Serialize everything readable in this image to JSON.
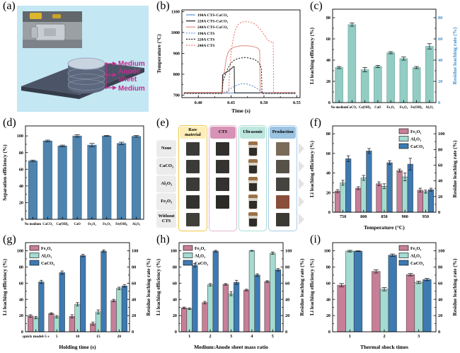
{
  "letters": [
    "(a)",
    "(b)",
    "(c)",
    "(d)",
    "(e)",
    "(f)",
    "(g)",
    "(h)",
    "(i)"
  ],
  "panel_a": {
    "bg": "#c3e7f3",
    "accent": "#c42b8f",
    "labels": [
      "Medium",
      "Anode",
      "sheet",
      "Medium"
    ]
  },
  "panel_e": {
    "columns": [
      {
        "label": "Raw material",
        "header_bg": "#fdeeb8",
        "border": "#f0c64a"
      },
      {
        "label": "CTS",
        "header_bg": "#d793b5",
        "border": "#e2b6ca"
      },
      {
        "label": "Ultrasonic",
        "header_bg": "#bde7de",
        "border": "#a8ded6"
      },
      {
        "label": "Production",
        "header_bg": "#9cc3e2",
        "border": "#a9cce8"
      }
    ],
    "rows": [
      {
        "label": "None",
        "raw": "#3b3a36",
        "cts": "#31302c",
        "production": "#7a6a58"
      },
      {
        "label": "CaCO₃",
        "raw": "#3b3a36",
        "cts": "#34332f",
        "production": "#56524a"
      },
      {
        "label": "Al₂O₃",
        "raw": "#3b3a36",
        "cts": "#33322e",
        "production": "#46443e"
      },
      {
        "label": "Fe₂O₃",
        "raw": "#34322e",
        "cts": "#2b2a26",
        "production": "#8a4e3a"
      },
      {
        "label": "Without CTS",
        "raw": "#403f3a",
        "cts": null,
        "production": "#3b3a34"
      }
    ]
  },
  "chart_data": [
    {
      "panel": "b",
      "type": "line",
      "xlabel": "Time (s)",
      "ylabel": "Temperature (°C)",
      "x_min": 0.375,
      "x_max": 0.555,
      "y_min": 688,
      "y_max": 1108,
      "x_ticks": [
        0.4,
        0.45,
        0.5,
        0.55
      ],
      "x_tick_labels": [
        "0.40",
        "0.45",
        "0.50",
        "0.55"
      ],
      "y_ticks": [
        700,
        800,
        900,
        1000,
        1100
      ],
      "legend_pos": "tl",
      "series": [
        {
          "name": "190A CTS-CaCO₃",
          "color": "#5b8fc9",
          "dash": false,
          "points": [
            [
              0.378,
              710
            ],
            [
              0.548,
              710
            ]
          ]
        },
        {
          "name": "220A CTS-CaCO₃",
          "color": "#1a1a1a",
          "dash": false,
          "points": [
            [
              0.378,
              710
            ],
            [
              0.4365,
              710
            ],
            [
              0.437,
              796
            ],
            [
              0.441,
              806
            ],
            [
              0.446,
              816
            ],
            [
              0.451,
              829
            ],
            [
              0.4535,
              836
            ],
            [
              0.4548,
              836
            ],
            [
              0.4552,
              711
            ],
            [
              0.548,
              711
            ]
          ]
        },
        {
          "name": "240A CTS-CaCO₃",
          "color": "#dd8a7e",
          "dash": false,
          "points": [
            [
              0.378,
              712
            ],
            [
              0.4368,
              712
            ],
            [
              0.4382,
              798
            ],
            [
              0.4398,
              812
            ],
            [
              0.4425,
              872
            ],
            [
              0.4455,
              906
            ],
            [
              0.4505,
              923
            ],
            [
              0.456,
              931
            ],
            [
              0.465,
              936
            ],
            [
              0.476,
              936
            ],
            [
              0.486,
              931
            ],
            [
              0.4905,
              925
            ],
            [
              0.4935,
              914
            ],
            [
              0.4943,
              712
            ],
            [
              0.548,
              712
            ]
          ]
        },
        {
          "name": "190A CTS",
          "color": "#5b8fc9",
          "dash": true,
          "points": [
            [
              0.378,
              709
            ],
            [
              0.4395,
              709
            ],
            [
              0.445,
              721
            ],
            [
              0.451,
              735
            ],
            [
              0.459,
              748
            ],
            [
              0.4665,
              755
            ],
            [
              0.474,
              753
            ],
            [
              0.484,
              743
            ],
            [
              0.4935,
              724
            ],
            [
              0.4995,
              711
            ],
            [
              0.505,
              709
            ],
            [
              0.548,
              709
            ]
          ]
        },
        {
          "name": "220A CTS",
          "color": "#1a1a1a",
          "dash": true,
          "points": [
            [
              0.378,
              708
            ],
            [
              0.436,
              708
            ],
            [
              0.4372,
              762
            ],
            [
              0.4405,
              792
            ],
            [
              0.4455,
              831
            ],
            [
              0.4505,
              856
            ],
            [
              0.4555,
              869
            ],
            [
              0.4625,
              877
            ],
            [
              0.4705,
              880
            ],
            [
              0.478,
              878
            ],
            [
              0.4855,
              871
            ],
            [
              0.4905,
              861
            ],
            [
              0.4945,
              844
            ],
            [
              0.4962,
              824
            ],
            [
              0.497,
              708
            ],
            [
              0.548,
              708
            ]
          ]
        },
        {
          "name": "240A CTS",
          "color": "#e8796c",
          "dash": true,
          "points": [
            [
              0.378,
              713
            ],
            [
              0.4462,
              713
            ],
            [
              0.4478,
              812
            ],
            [
              0.4494,
              882
            ],
            [
              0.4512,
              932
            ],
            [
              0.4536,
              976
            ],
            [
              0.4562,
              1010
            ],
            [
              0.4602,
              1036
            ],
            [
              0.4652,
              1049
            ],
            [
              0.4702,
              1052
            ],
            [
              0.478,
              1050
            ],
            [
              0.4852,
              1042
            ],
            [
              0.4902,
              1030
            ],
            [
              0.4952,
              1012
            ],
            [
              0.5002,
              990
            ],
            [
              0.5052,
              966
            ],
            [
              0.5082,
              958
            ],
            [
              0.5122,
              953
            ],
            [
              0.5142,
              953
            ],
            [
              0.5148,
              713
            ],
            [
              0.548,
              713
            ]
          ]
        }
      ]
    },
    {
      "panel": "c",
      "type": "bar",
      "bar_frac": 0.6,
      "cat_font": 4.7,
      "categories": [
        "No medium",
        "CaCO₃",
        "Ca(OH)₂",
        "CaO",
        "Fe₂O₃",
        "Fe₃O₄",
        "Fe(OH)₃",
        "Al₂O₃"
      ],
      "series": [
        {
          "name": "",
          "color": "#92ccc3",
          "edge": "#4d9a8f",
          "values": [
            33,
            73.5,
            31,
            34,
            47,
            41.5,
            33,
            53
          ],
          "errors": [
            1,
            1.5,
            2,
            1,
            1,
            1.5,
            1,
            2.5
          ]
        }
      ],
      "left_axis": {
        "label": "Li leaching efficiency (%)",
        "ticks": [
          0,
          20,
          40,
          60,
          80
        ],
        "max": 88
      },
      "right_axis": {
        "label": "Residue leaching rate (%)",
        "ticks": [
          0,
          20,
          40,
          60,
          80
        ],
        "max": 88,
        "color": "#3f8ecb"
      }
    },
    {
      "panel": "d",
      "type": "bar",
      "bar_frac": 0.6,
      "cat_font": 4.7,
      "categories": [
        "No medium",
        "CaCO₃",
        "Ca(OH)₂",
        "CaO",
        "Fe₂O₃",
        "Fe₃O₄",
        "Fe(OH)₃",
        "Al₂O₃"
      ],
      "series": [
        {
          "name": "",
          "color": "#4f84ae",
          "edge": "#24557c",
          "values": [
            70,
            94,
            88,
            100,
            89,
            100,
            91,
            99.5
          ],
          "errors": [
            1,
            1,
            1,
            1.5,
            2,
            0.5,
            1.5,
            1
          ]
        }
      ],
      "left_axis": {
        "label": "Separation efficiency (%)",
        "ticks": [
          0,
          20,
          40,
          60,
          80,
          100
        ],
        "max": 112
      }
    },
    {
      "panel": "f",
      "type": "bar",
      "bar_frac": 0.78,
      "cat_font": 6.2,
      "legend": "tr",
      "xlabel": "Temperature (°C)",
      "categories": [
        "750",
        "800",
        "850",
        "900",
        "950"
      ],
      "series": [
        {
          "name": "Fe₂O₃",
          "color": "#c77f98",
          "edge": "#333333",
          "values": [
            21.5,
            24.5,
            29,
            42.5,
            22.5
          ],
          "errors": [
            1.5,
            1.5,
            2,
            1.5,
            2
          ]
        },
        {
          "name": "Al₂O₃",
          "color": "#a5dbd1",
          "edge": "#333333",
          "values": [
            30,
            35,
            26.5,
            36,
            21
          ],
          "errors": [
            2.5,
            2.5,
            2.5,
            4,
            1.5
          ]
        },
        {
          "name": "CaCO₃",
          "color": "#3d7ab2",
          "edge": "#333333",
          "values": [
            54.5,
            62.5,
            50.5,
            49,
            23
          ],
          "errors": [
            3,
            2.5,
            2,
            6,
            1.5
          ]
        }
      ],
      "left_axis": {
        "label": "Li leaching efficiency (%)",
        "ticks": [
          0,
          20,
          40,
          60,
          80
        ],
        "max": 88
      },
      "right_axis": {
        "label": "Residue leaching rate (%)",
        "ticks": [
          0,
          20,
          40,
          60,
          80,
          100
        ],
        "max": 110,
        "color": "#000000"
      }
    },
    {
      "panel": "g",
      "type": "bar",
      "bar_frac": 0.78,
      "cat_font": 5.6,
      "legend": "tl",
      "xlabel": "Holding time (s)",
      "categories": [
        "quick model-5 s",
        "5",
        "10",
        "15",
        "20"
      ],
      "series": [
        {
          "name": "Fe₂O₃",
          "color": "#c77f98",
          "edge": "#333333",
          "values": [
            19.5,
            22.5,
            19,
            10,
            38.5
          ],
          "errors": [
            1.5,
            1,
            2,
            2,
            1.5
          ]
        },
        {
          "name": "Al₂O₃",
          "color": "#a5dbd1",
          "edge": "#333333",
          "values": [
            17.5,
            18.5,
            34,
            24.5,
            53.5
          ],
          "errors": [
            1.5,
            1.5,
            2,
            2.5,
            1.5
          ]
        },
        {
          "name": "CaCO₃",
          "color": "#3d7ab2",
          "edge": "#333333",
          "values": [
            61.5,
            73,
            94,
            99.5,
            56.5
          ],
          "errors": [
            2,
            2,
            1.5,
            1.5,
            1.5
          ]
        }
      ],
      "left_axis": {
        "label": "Li leaching efficiency (%)",
        "ticks": [
          0,
          20,
          40,
          60,
          80,
          100
        ],
        "max": 110
      },
      "right_axis": {
        "label": "Residue leaching rate (%)",
        "ticks": [
          0,
          20,
          40,
          60,
          80,
          100
        ],
        "max": 110,
        "color": "#000000"
      }
    },
    {
      "panel": "h",
      "type": "bar",
      "bar_frac": 0.78,
      "cat_font": 6.2,
      "legend": "tl",
      "xlabel": "Medium:Anode sheet mass ratio",
      "categories": [
        "1",
        "2",
        "3",
        "4",
        "5"
      ],
      "series": [
        {
          "name": "Fe₂O₃",
          "color": "#c77f98",
          "edge": "#333333",
          "values": [
            29.5,
            36,
            58.5,
            51.5,
            62
          ],
          "errors": [
            1,
            1.5,
            1,
            1,
            1
          ]
        },
        {
          "name": "Al₂O₃",
          "color": "#a5dbd1",
          "edge": "#333333",
          "values": [
            28.5,
            58,
            47,
            100,
            97
          ],
          "errors": [
            1,
            1.5,
            2.5,
            0.5,
            1.5
          ]
        },
        {
          "name": "CaCO₃",
          "color": "#3d7ab2",
          "edge": "#333333",
          "values": [
            82,
            99.5,
            61,
            70,
            76.5
          ],
          "errors": [
            2,
            1,
            2.5,
            1.5,
            1.5
          ]
        }
      ],
      "left_axis": {
        "label": "Li leaching efficiency (%)",
        "ticks": [
          0,
          20,
          40,
          60,
          80,
          100
        ],
        "max": 110
      },
      "right_axis": {
        "label": "Residue leaching rate (%)",
        "ticks": [
          0,
          20,
          40,
          60,
          80,
          100
        ],
        "max": 110,
        "color": "#000000"
      }
    },
    {
      "panel": "i",
      "type": "bar",
      "bar_frac": 0.72,
      "cat_font": 6.2,
      "legend": "tr",
      "xlabel": "Thermal shock times",
      "categories": [
        "1",
        "2",
        "3"
      ],
      "series": [
        {
          "name": "Fe₂O₃",
          "color": "#c77f98",
          "edge": "#333333",
          "values": [
            57.5,
            74.5,
            70.5
          ],
          "errors": [
            2,
            2,
            1.5
          ]
        },
        {
          "name": "Al₂O₃",
          "color": "#a5dbd1",
          "edge": "#333333",
          "values": [
            99.5,
            52.5,
            61
          ],
          "errors": [
            1,
            2,
            1.5
          ]
        },
        {
          "name": "CaCO₃",
          "color": "#3d7ab2",
          "edge": "#333333",
          "values": [
            99.5,
            94.5,
            64.5
          ],
          "errors": [
            0.5,
            1.5,
            1.5
          ]
        }
      ],
      "left_axis": {
        "label": "Li leaching efficiency (%)",
        "ticks": [
          0,
          20,
          40,
          60,
          80,
          100
        ],
        "max": 110
      },
      "right_axis": {
        "label": "Residue leaching rate (%)",
        "ticks": [
          0,
          20,
          40,
          60,
          80,
          100
        ],
        "max": 110,
        "color": "#000000"
      }
    }
  ]
}
